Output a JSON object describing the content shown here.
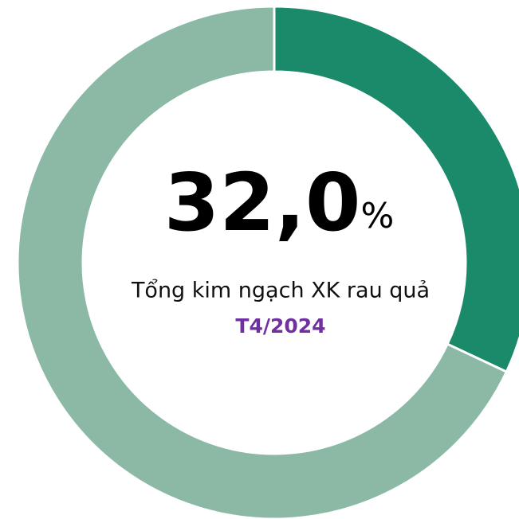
{
  "chart_data": {
    "type": "donut",
    "values": [
      32.0,
      68.0
    ],
    "value_labels": [
      "32,0%",
      null
    ],
    "colors": [
      "#1a8a6a",
      "#8bb9a5"
    ],
    "subtitle": "Tổng kim ngạch XK rau quả",
    "period": "T4/2024"
  }
}
